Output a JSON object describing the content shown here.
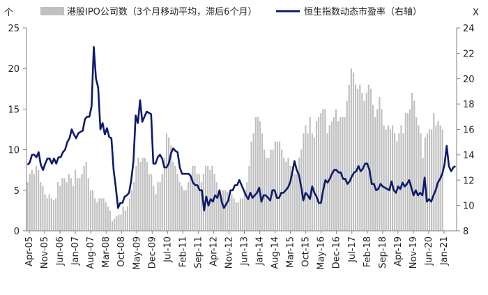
{
  "chart_data": {
    "type": "bar+line",
    "title": "",
    "left_axis_unit": "个",
    "right_axis_unit": "X",
    "left_ylim": [
      0,
      25
    ],
    "left_yticks": [
      "0",
      "5",
      "10",
      "15",
      "20",
      "25"
    ],
    "right_ylim": [
      8,
      24
    ],
    "right_yticks": [
      "8",
      "10",
      "12",
      "14",
      "16",
      "18",
      "20",
      "22",
      "24"
    ],
    "x_tick_labels": [
      "Apr-05",
      "Nov-05",
      "Jun-06",
      "Jan-07",
      "Aug-07",
      "Mar-08",
      "Oct-08",
      "May-09",
      "Dec-09",
      "Jul-10",
      "Feb-11",
      "Sep-11",
      "Apr-12",
      "Nov-12",
      "Jun-13",
      "Jan-14",
      "Aug-14",
      "Mar-15",
      "Oct-15",
      "May-16",
      "Dec-16",
      "Jul-17",
      "Feb-18",
      "Sep-18",
      "Apr-19",
      "Nov-19",
      "Jun-20",
      "Jan-21"
    ],
    "legend": {
      "bar_label": "港股IPO公司数（3个月移动平均，滞后6个月）",
      "line_label": "恒生指数动态市盈率（右轴）"
    },
    "colors": {
      "bar": "#c0c0c0",
      "line": "#0d1a6e",
      "axis": "#808080"
    },
    "series": [
      {
        "name": "港股IPO公司数（3个月移动平均，滞后6个月）",
        "axis": "left",
        "values": [
          6,
          7,
          7.5,
          7,
          8,
          7.5,
          6,
          5.5,
          4.5,
          4,
          4.5,
          4,
          3.8,
          4,
          6,
          5.5,
          6.5,
          6.5,
          6,
          7,
          6.5,
          5.5,
          7.5,
          6.5,
          6.5,
          7,
          8,
          8.5,
          6.5,
          5,
          5,
          4,
          3.5,
          4,
          4,
          4,
          3.5,
          3,
          2.5,
          1.2,
          1.5,
          1.8,
          2,
          2,
          3,
          2.5,
          3,
          4,
          5,
          6,
          8,
          9,
          8.5,
          9,
          9,
          8.5,
          7,
          7,
          5.5,
          4.5,
          6,
          6,
          7,
          9,
          12,
          11.5,
          10.5,
          8.5,
          8,
          7,
          6,
          5.5,
          5,
          5,
          6,
          7,
          8,
          8,
          7,
          7,
          6,
          7,
          8,
          8,
          7.5,
          8,
          7,
          6,
          5,
          4.5,
          5,
          5,
          4.8,
          4,
          4.5,
          4,
          3.5,
          3.5,
          4,
          4,
          5,
          6,
          8,
          11,
          12,
          14,
          14,
          13.5,
          12,
          10,
          9,
          9,
          10,
          10,
          11,
          11,
          11,
          10,
          9,
          8.5,
          9,
          8,
          8,
          7,
          7,
          9,
          10,
          12,
          13,
          12,
          14,
          12,
          11.5,
          13.5,
          14,
          14.5,
          15,
          15,
          12,
          13,
          13.5,
          14,
          15,
          13.5,
          14,
          14,
          14,
          16,
          18,
          20,
          19.5,
          18,
          17.5,
          18,
          17,
          16,
          17,
          18,
          17.5,
          15.5,
          14,
          15,
          16.5,
          15,
          13,
          12.5,
          13,
          12.5,
          13,
          12,
          11,
          12,
          13,
          12,
          14.5,
          14.5,
          15,
          17,
          16,
          14,
          13,
          12,
          9,
          11.5,
          12,
          12.5,
          12.5,
          14.5,
          13,
          13.5,
          13,
          12.5,
          0,
          0,
          0,
          0,
          0,
          0
        ]
      },
      {
        "name": "恒生指数动态市盈率（右轴）",
        "axis": "right",
        "values": [
          13.2,
          13.4,
          14,
          14,
          13.8,
          14.2,
          13.2,
          12.8,
          13.3,
          13.7,
          13.7,
          13.3,
          13.7,
          13.3,
          13.8,
          13.8,
          14.2,
          14.4,
          15,
          15.3,
          16,
          15.6,
          15.3,
          15.7,
          15.8,
          15.9,
          16.8,
          17,
          17,
          17.8,
          22.5,
          20,
          19.3,
          16,
          16.5,
          15.6,
          16.1,
          15.4,
          15.3,
          12.8,
          11.4,
          9.8,
          10.2,
          10.2,
          10.7,
          10.8,
          11,
          12,
          13.5,
          17.1,
          16.5,
          18.3,
          16.6,
          17,
          17.4,
          17.3,
          17.2,
          13.3,
          13.3,
          13.8,
          14,
          13.7,
          13,
          13,
          13.3,
          14.1,
          14.5,
          14.3,
          14.2,
          13,
          12.5,
          12.5,
          12.5,
          12.5,
          12.3,
          11.8,
          11.6,
          11.6,
          11.2,
          11.2,
          9.6,
          10.7,
          10,
          10.5,
          10.3,
          10.8,
          10.6,
          11.2,
          10.3,
          9.8,
          10.1,
          10.4,
          11.2,
          11.2,
          11.6,
          11.6,
          12,
          11.6,
          11.2,
          10.8,
          10.5,
          11,
          10.6,
          10.8,
          11,
          11.4,
          10.3,
          10.8,
          10.8,
          10.6,
          10.4,
          11.2,
          11.2,
          10.6,
          10.6,
          11,
          11,
          11.2,
          11.4,
          11.8,
          12.6,
          13.5,
          12.8,
          12.4,
          11.5,
          10.4,
          11,
          10.8,
          10.5,
          11.5,
          11,
          10.7,
          10.2,
          10.2,
          11.2,
          12,
          11.8,
          12.1,
          12.5,
          12.8,
          12.8,
          12.6,
          12.6,
          12.1,
          12.1,
          11.7,
          11.9,
          12.3,
          12.6,
          12.7,
          13.1,
          12.7,
          12.9,
          13.3,
          13.3,
          12.8,
          11.7,
          11.7,
          11.2,
          11.3,
          11.7,
          11.5,
          11.4,
          11.3,
          11.2,
          11.9,
          11.2,
          11,
          11.5,
          11.3,
          11.8,
          11.5,
          11.7,
          12,
          11.4,
          10.8,
          11.2,
          10.8,
          11,
          10.8,
          12.2,
          10.3,
          10.5,
          10.3,
          10.8,
          11.2,
          11.8,
          12.1,
          12.5,
          13.2,
          14.7,
          13.1,
          12.7,
          13,
          13.1
        ]
      }
    ]
  }
}
